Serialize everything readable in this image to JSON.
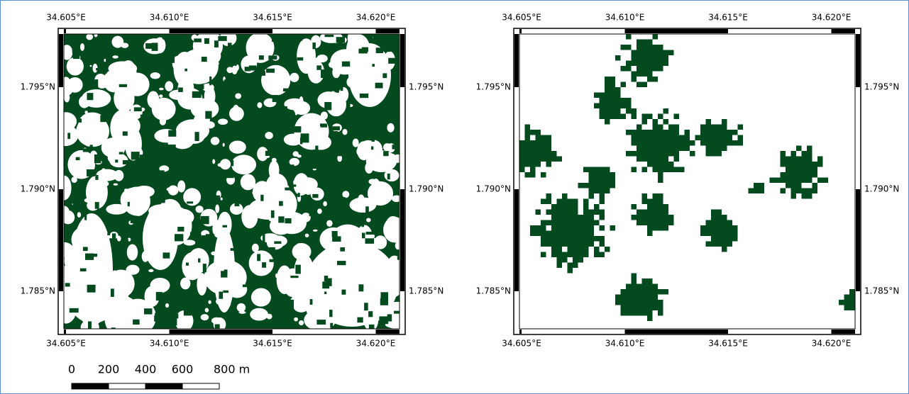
{
  "maps": [
    {
      "lon_labels": [
        "34.605°E",
        "34.610°E",
        "34.615°E",
        "34.620°E"
      ],
      "lat_labels": [
        "1.795°N",
        "1.790°N",
        "1.785°N"
      ]
    },
    {
      "lon_labels": [
        "34.605°E",
        "34.610°E",
        "34.615°E",
        "34.620°E"
      ],
      "lat_labels": [
        "1.795°N",
        "1.790°N",
        "1.785°N"
      ]
    }
  ],
  "scale_bar": {
    "labels": [
      "0",
      "200",
      "400",
      "600",
      "800 m"
    ]
  }
}
